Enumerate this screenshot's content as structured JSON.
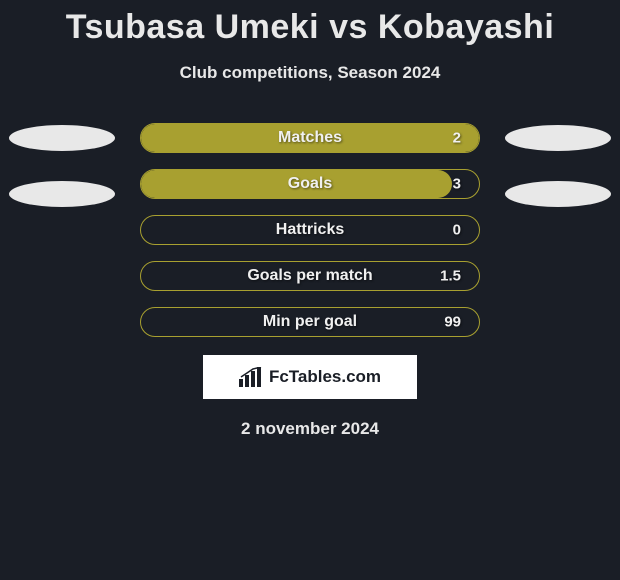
{
  "title": "Tsubasa Umeki vs Kobayashi",
  "subtitle": "Club competitions, Season 2024",
  "date": "2 november 2024",
  "brand": "FcTables.com",
  "colors": {
    "background": "#1a1e26",
    "bar_fill": "#a8a030",
    "bar_border": "#a8a030",
    "text": "#e8e8e8",
    "ellipse": "#e8e8e8",
    "brand_box": "#ffffff",
    "brand_text": "#1a1e26"
  },
  "left_ellipses": 2,
  "right_ellipses": 2,
  "stats": [
    {
      "label": "Matches",
      "value": "2",
      "fill_pct": 100
    },
    {
      "label": "Goals",
      "value": "3",
      "fill_pct": 92
    },
    {
      "label": "Hattricks",
      "value": "0",
      "fill_pct": 0
    },
    {
      "label": "Goals per match",
      "value": "1.5",
      "fill_pct": 0
    },
    {
      "label": "Min per goal",
      "value": "99",
      "fill_pct": 0
    }
  ]
}
